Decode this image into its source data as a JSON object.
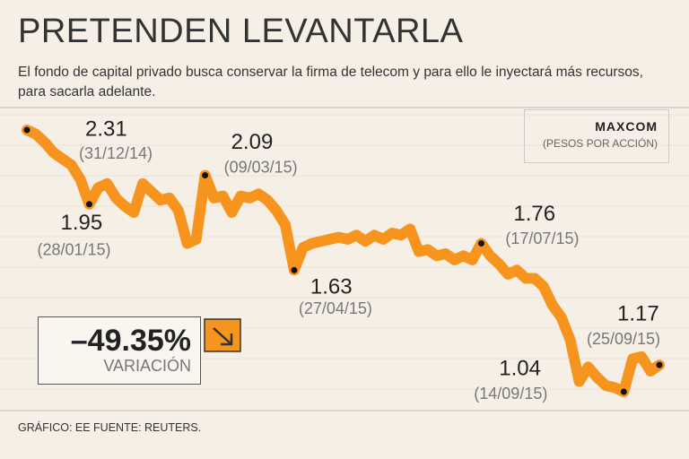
{
  "chart_data": {
    "type": "line",
    "title": "PRETENDEN LEVANTARLA",
    "subtitle": "El fondo de capital privado busca conservar la firma de telecom y para ello le inyectará más recursos, para sacarla adelante.",
    "legend_title": "MAXCOM",
    "legend_subtitle": "(PESOS POR ACCIÓN)",
    "variation": "–49.35%",
    "variation_label": "VARIACIÓN",
    "footer": "GRÁFICO: EE  FUENTE: REUTERS.",
    "categories": [
      "(31/12/14)",
      null,
      null,
      null,
      null,
      null,
      null,
      "(28/01/15)",
      null,
      null,
      null,
      null,
      null,
      null,
      null,
      null,
      null,
      null,
      null,
      null,
      "(09/03/15)",
      null,
      null,
      null,
      null,
      null,
      null,
      null,
      null,
      null,
      "(27/04/15)",
      null,
      null,
      null,
      null,
      null,
      null,
      null,
      null,
      null,
      null,
      null,
      null,
      null,
      null,
      null,
      null,
      null,
      null,
      null,
      null,
      "(17/07/15)",
      null,
      null,
      null,
      null,
      null,
      null,
      null,
      null,
      null,
      null,
      null,
      null,
      null,
      null,
      null,
      "(14/09/15)",
      null,
      null,
      null,
      "(25/09/15)"
    ],
    "series": [
      {
        "name": "MAXCOM",
        "color": "#f7941d",
        "values": [
          2.31,
          2.29,
          2.25,
          2.2,
          2.17,
          2.14,
          2.07,
          1.95,
          2.03,
          2.05,
          1.98,
          1.94,
          1.91,
          2.05,
          2.01,
          1.97,
          1.98,
          1.92,
          1.76,
          1.78,
          2.09,
          1.98,
          1.99,
          1.91,
          1.99,
          1.98,
          2.0,
          1.97,
          1.92,
          1.85,
          1.63,
          1.74,
          1.76,
          1.77,
          1.78,
          1.79,
          1.78,
          1.8,
          1.77,
          1.8,
          1.78,
          1.81,
          1.8,
          1.83,
          1.72,
          1.73,
          1.7,
          1.71,
          1.68,
          1.7,
          1.68,
          1.76,
          1.7,
          1.66,
          1.61,
          1.63,
          1.59,
          1.59,
          1.55,
          1.46,
          1.4,
          1.29,
          1.09,
          1.16,
          1.11,
          1.07,
          1.06,
          1.04,
          1.2,
          1.21,
          1.14,
          1.17
        ]
      }
    ]
  }
}
